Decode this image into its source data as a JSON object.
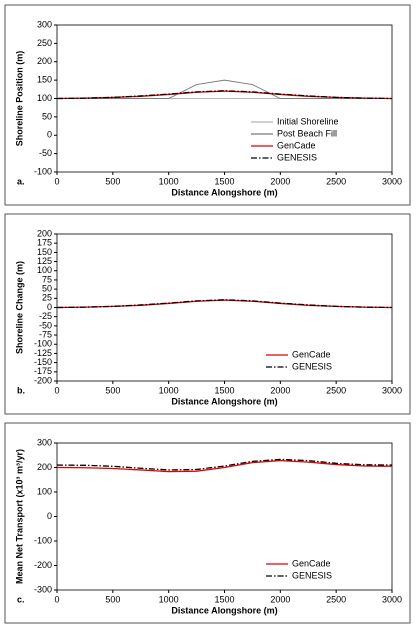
{
  "chart_data": [
    {
      "type": "line",
      "panel_label": "a.",
      "xlabel": "Distance Alongshore  (m)",
      "ylabel": "Shoreline Position  (m)",
      "x": [
        0,
        250,
        500,
        750,
        1000,
        1250,
        1500,
        1750,
        2000,
        2250,
        2500,
        2750,
        3000
      ],
      "xlim": [
        0,
        3000
      ],
      "xticks": [
        0,
        500,
        1000,
        1500,
        2000,
        2500,
        3000
      ],
      "ylim": [
        -100,
        300
      ],
      "yticks": [
        -100,
        -50,
        0,
        50,
        100,
        150,
        200,
        250,
        300
      ],
      "legend": "lower right",
      "series": [
        {
          "name": "Initial Shoreline",
          "color": "#b4b4b4",
          "linestyle": "solid",
          "values": [
            100,
            100,
            100,
            100,
            100,
            100,
            100,
            100,
            100,
            100,
            100,
            100,
            100
          ]
        },
        {
          "name": "Post Beach Fill",
          "color": "#7a7a7a",
          "linestyle": "solid",
          "values": [
            100,
            100,
            100,
            100,
            100,
            138,
            150,
            138,
            100,
            100,
            100,
            100,
            100
          ]
        },
        {
          "name": "GenCade",
          "color": "#e00000",
          "linestyle": "solid",
          "values": [
            100,
            101,
            103,
            106,
            111,
            117,
            120,
            117,
            111,
            106,
            103,
            101,
            100
          ]
        },
        {
          "name": "GENESIS",
          "color": "#000000",
          "linestyle": "dashdot",
          "values": [
            100,
            101,
            103,
            107,
            112,
            118,
            121,
            118,
            112,
            107,
            103,
            101,
            100
          ]
        }
      ]
    },
    {
      "type": "line",
      "panel_label": "b.",
      "xlabel": "Distance Alongshore  (m)",
      "ylabel": "Shoreline Change  (m)",
      "x": [
        0,
        250,
        500,
        750,
        1000,
        1250,
        1500,
        1750,
        2000,
        2250,
        2500,
        2750,
        3000
      ],
      "xlim": [
        0,
        3000
      ],
      "xticks": [
        0,
        500,
        1000,
        1500,
        2000,
        2500,
        3000
      ],
      "ylim": [
        -200,
        200
      ],
      "yticks": [
        -200,
        -175,
        -150,
        -125,
        -100,
        -75,
        -50,
        -25,
        0,
        25,
        50,
        75,
        100,
        125,
        150,
        175,
        200
      ],
      "legend": "lower right",
      "series": [
        {
          "name": "GenCade",
          "color": "#e00000",
          "linestyle": "solid",
          "values": [
            0,
            1,
            3,
            6,
            11,
            17,
            20,
            17,
            11,
            6,
            3,
            1,
            0
          ]
        },
        {
          "name": "GENESIS",
          "color": "#000000",
          "linestyle": "dashdot",
          "values": [
            0,
            1,
            3,
            7,
            12,
            18,
            21,
            18,
            12,
            7,
            3,
            1,
            0
          ]
        }
      ]
    },
    {
      "type": "line",
      "panel_label": "c.",
      "xlabel": "Distance Alongshore  (m)",
      "ylabel": "Mean Net Transport (x10³ m³/yr)",
      "x": [
        0,
        250,
        500,
        750,
        1000,
        1250,
        1500,
        1750,
        2000,
        2250,
        2500,
        2750,
        3000
      ],
      "xlim": [
        0,
        3000
      ],
      "xticks": [
        0,
        500,
        1000,
        1500,
        2000,
        2500,
        3000
      ],
      "ylim": [
        -300,
        300
      ],
      "yticks": [
        -300,
        -200,
        -100,
        0,
        100,
        200,
        300
      ],
      "legend": "lower right",
      "series": [
        {
          "name": "GenCade",
          "color": "#e00000",
          "linestyle": "solid",
          "values": [
            200,
            199,
            196,
            190,
            183,
            185,
            200,
            220,
            228,
            222,
            212,
            206,
            205
          ]
        },
        {
          "name": "GENESIS",
          "color": "#000000",
          "linestyle": "dashdot",
          "values": [
            210,
            209,
            205,
            197,
            190,
            192,
            206,
            225,
            233,
            228,
            217,
            211,
            210
          ]
        }
      ]
    }
  ]
}
